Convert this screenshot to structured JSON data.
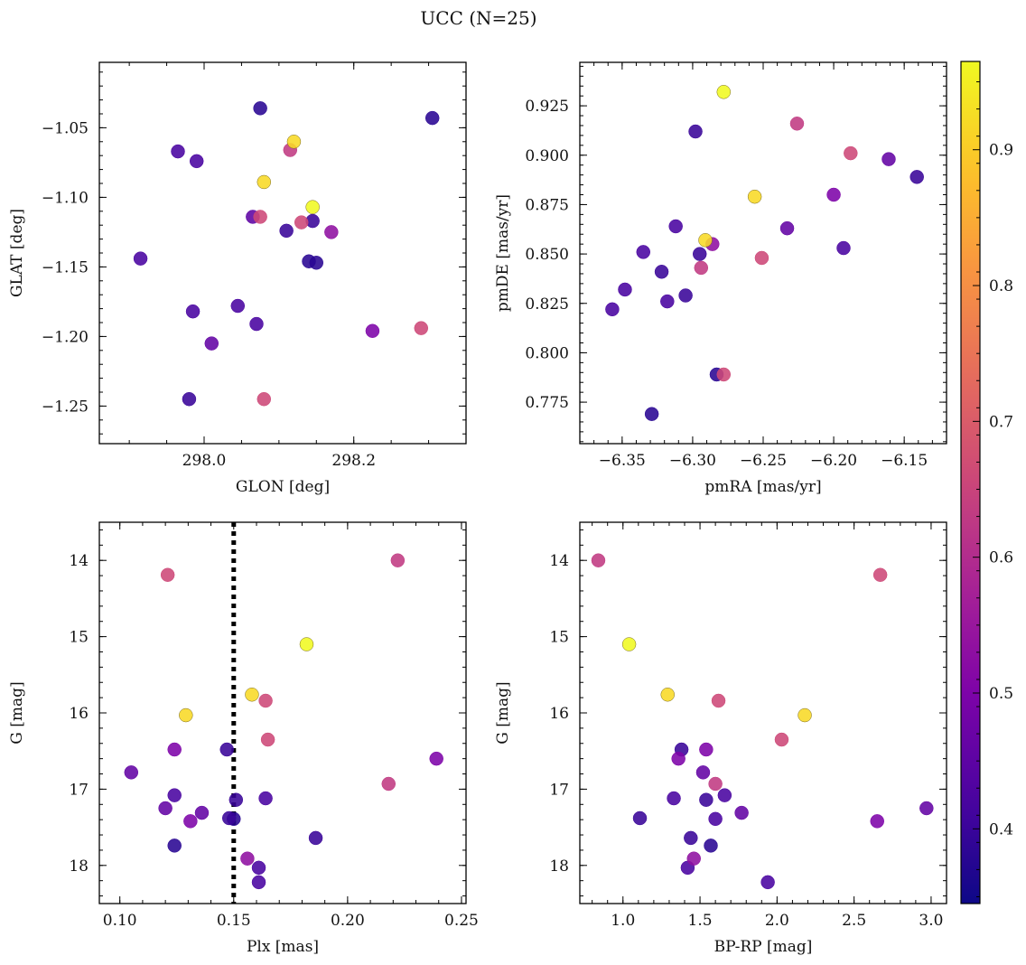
{
  "title": "UCC (N=25)",
  "colorbar": {
    "colormap": "plasma",
    "range": [
      0.345,
      0.965
    ],
    "ticks": [
      0.4,
      0.5,
      0.6,
      0.7,
      0.8,
      0.9
    ],
    "tick_labels": [
      "0.4",
      "0.5",
      "0.6",
      "0.7",
      "0.8",
      "0.9"
    ]
  },
  "chart_data": [
    {
      "type": "scatter",
      "xlabel": "GLON [deg]",
      "ylabel": "GLAT [deg]",
      "xlim": [
        297.86,
        298.35
      ],
      "ylim": [
        -1.277,
        -1.003
      ],
      "y_inverted": false,
      "xticks": [
        298.0,
        298.2
      ],
      "xtick_labels": [
        "298.0",
        "298.2"
      ],
      "yticks": [
        -1.25,
        -1.2,
        -1.15,
        -1.1,
        -1.05
      ],
      "ytick_labels": [
        "−1.25",
        "−1.20",
        "−1.15",
        "−1.10",
        "−1.05"
      ],
      "points": [
        {
          "x": 298.075,
          "y": -1.036,
          "c": 0.38
        },
        {
          "x": 298.305,
          "y": -1.043,
          "c": 0.38
        },
        {
          "x": 298.12,
          "y": -1.06,
          "c": 0.92
        },
        {
          "x": 297.965,
          "y": -1.067,
          "c": 0.42
        },
        {
          "x": 298.115,
          "y": -1.066,
          "c": 0.63
        },
        {
          "x": 297.99,
          "y": -1.074,
          "c": 0.42
        },
        {
          "x": 298.08,
          "y": -1.089,
          "c": 0.92
        },
        {
          "x": 298.145,
          "y": -1.107,
          "c": 0.965
        },
        {
          "x": 298.065,
          "y": -1.114,
          "c": 0.45
        },
        {
          "x": 298.075,
          "y": -1.114,
          "c": 0.66
        },
        {
          "x": 298.13,
          "y": -1.118,
          "c": 0.66
        },
        {
          "x": 298.145,
          "y": -1.117,
          "c": 0.4
        },
        {
          "x": 298.11,
          "y": -1.124,
          "c": 0.4
        },
        {
          "x": 298.17,
          "y": -1.125,
          "c": 0.53
        },
        {
          "x": 297.915,
          "y": -1.144,
          "c": 0.42
        },
        {
          "x": 298.14,
          "y": -1.146,
          "c": 0.38
        },
        {
          "x": 298.15,
          "y": -1.147,
          "c": 0.38
        },
        {
          "x": 298.045,
          "y": -1.178,
          "c": 0.42
        },
        {
          "x": 297.985,
          "y": -1.182,
          "c": 0.42
        },
        {
          "x": 298.07,
          "y": -1.191,
          "c": 0.42
        },
        {
          "x": 298.225,
          "y": -1.196,
          "c": 0.5
        },
        {
          "x": 298.29,
          "y": -1.194,
          "c": 0.66
        },
        {
          "x": 298.01,
          "y": -1.205,
          "c": 0.46
        },
        {
          "x": 297.98,
          "y": -1.245,
          "c": 0.4
        },
        {
          "x": 298.08,
          "y": -1.245,
          "c": 0.66
        }
      ]
    },
    {
      "type": "scatter",
      "xlabel": "pmRA [mas/yr]",
      "ylabel": "pmDE [mas/yr]",
      "xlim": [
        -6.38,
        -6.12
      ],
      "ylim": [
        0.754,
        0.947
      ],
      "y_inverted": false,
      "xticks": [
        -6.35,
        -6.3,
        -6.25,
        -6.2,
        -6.15
      ],
      "xtick_labels": [
        "−6.35",
        "−6.30",
        "−6.25",
        "−6.20",
        "−6.15"
      ],
      "yticks": [
        0.775,
        0.8,
        0.825,
        0.85,
        0.875,
        0.9,
        0.925
      ],
      "ytick_labels": [
        "0.775",
        "0.800",
        "0.825",
        "0.850",
        "0.875",
        "0.900",
        "0.925"
      ],
      "points": [
        {
          "x": -6.278,
          "y": 0.932,
          "c": 0.965
        },
        {
          "x": -6.226,
          "y": 0.916,
          "c": 0.63
        },
        {
          "x": -6.298,
          "y": 0.912,
          "c": 0.4
        },
        {
          "x": -6.188,
          "y": 0.901,
          "c": 0.66
        },
        {
          "x": -6.161,
          "y": 0.898,
          "c": 0.46
        },
        {
          "x": -6.141,
          "y": 0.889,
          "c": 0.4
        },
        {
          "x": -6.2,
          "y": 0.88,
          "c": 0.5
        },
        {
          "x": -6.256,
          "y": 0.879,
          "c": 0.92
        },
        {
          "x": -6.312,
          "y": 0.864,
          "c": 0.42
        },
        {
          "x": -6.233,
          "y": 0.863,
          "c": 0.46
        },
        {
          "x": -6.291,
          "y": 0.857,
          "c": 0.92
        },
        {
          "x": -6.286,
          "y": 0.855,
          "c": 0.53
        },
        {
          "x": -6.193,
          "y": 0.853,
          "c": 0.42
        },
        {
          "x": -6.335,
          "y": 0.851,
          "c": 0.42
        },
        {
          "x": -6.295,
          "y": 0.85,
          "c": 0.4
        },
        {
          "x": -6.251,
          "y": 0.848,
          "c": 0.66
        },
        {
          "x": -6.294,
          "y": 0.843,
          "c": 0.63
        },
        {
          "x": -6.322,
          "y": 0.841,
          "c": 0.4
        },
        {
          "x": -6.348,
          "y": 0.832,
          "c": 0.42
        },
        {
          "x": -6.305,
          "y": 0.829,
          "c": 0.4
        },
        {
          "x": -6.318,
          "y": 0.826,
          "c": 0.42
        },
        {
          "x": -6.357,
          "y": 0.822,
          "c": 0.42
        },
        {
          "x": -6.283,
          "y": 0.789,
          "c": 0.38
        },
        {
          "x": -6.278,
          "y": 0.789,
          "c": 0.66
        },
        {
          "x": -6.329,
          "y": 0.769,
          "c": 0.38
        }
      ]
    },
    {
      "type": "scatter",
      "xlabel": "Plx [mas]",
      "ylabel": "G [mag]",
      "xlim": [
        0.091,
        0.252
      ],
      "ylim": [
        13.5,
        18.5
      ],
      "y_inverted": true,
      "xticks": [
        0.1,
        0.15,
        0.2,
        0.25
      ],
      "xtick_labels": [
        "0.10",
        "0.15",
        "0.20",
        "0.25"
      ],
      "yticks": [
        14,
        15,
        16,
        17,
        18
      ],
      "ytick_labels": [
        "14",
        "15",
        "16",
        "17",
        "18"
      ],
      "vline": 0.15,
      "points": [
        {
          "x": 0.222,
          "y": 14.0,
          "c": 0.63
        },
        {
          "x": 0.121,
          "y": 14.19,
          "c": 0.66
        },
        {
          "x": 0.182,
          "y": 15.1,
          "c": 0.965
        },
        {
          "x": 0.158,
          "y": 15.76,
          "c": 0.92
        },
        {
          "x": 0.164,
          "y": 15.84,
          "c": 0.66
        },
        {
          "x": 0.129,
          "y": 16.03,
          "c": 0.92
        },
        {
          "x": 0.165,
          "y": 16.35,
          "c": 0.66
        },
        {
          "x": 0.124,
          "y": 16.48,
          "c": 0.5
        },
        {
          "x": 0.147,
          "y": 16.48,
          "c": 0.4
        },
        {
          "x": 0.239,
          "y": 16.6,
          "c": 0.5
        },
        {
          "x": 0.105,
          "y": 16.78,
          "c": 0.46
        },
        {
          "x": 0.218,
          "y": 16.93,
          "c": 0.63
        },
        {
          "x": 0.124,
          "y": 17.08,
          "c": 0.42
        },
        {
          "x": 0.164,
          "y": 17.12,
          "c": 0.42
        },
        {
          "x": 0.151,
          "y": 17.14,
          "c": 0.4
        },
        {
          "x": 0.12,
          "y": 17.25,
          "c": 0.46
        },
        {
          "x": 0.136,
          "y": 17.31,
          "c": 0.46
        },
        {
          "x": 0.131,
          "y": 17.42,
          "c": 0.5
        },
        {
          "x": 0.148,
          "y": 17.38,
          "c": 0.4
        },
        {
          "x": 0.15,
          "y": 17.39,
          "c": 0.38
        },
        {
          "x": 0.186,
          "y": 17.64,
          "c": 0.4
        },
        {
          "x": 0.124,
          "y": 17.74,
          "c": 0.38
        },
        {
          "x": 0.156,
          "y": 17.91,
          "c": 0.53
        },
        {
          "x": 0.161,
          "y": 18.03,
          "c": 0.42
        },
        {
          "x": 0.161,
          "y": 18.22,
          "c": 0.42
        }
      ]
    },
    {
      "type": "scatter",
      "xlabel": "BP-RP [mag]",
      "ylabel": "G [mag]",
      "xlim": [
        0.72,
        3.1
      ],
      "ylim": [
        13.5,
        18.5
      ],
      "y_inverted": true,
      "xticks": [
        1.0,
        1.5,
        2.0,
        2.5,
        3.0
      ],
      "xtick_labels": [
        "1.0",
        "1.5",
        "2.0",
        "2.5",
        "3.0"
      ],
      "yticks": [
        14,
        15,
        16,
        17,
        18
      ],
      "ytick_labels": [
        "14",
        "15",
        "16",
        "17",
        "18"
      ],
      "points": [
        {
          "x": 0.84,
          "y": 14.0,
          "c": 0.63
        },
        {
          "x": 2.67,
          "y": 14.19,
          "c": 0.66
        },
        {
          "x": 1.04,
          "y": 15.1,
          "c": 0.965
        },
        {
          "x": 1.29,
          "y": 15.76,
          "c": 0.92
        },
        {
          "x": 1.62,
          "y": 15.84,
          "c": 0.66
        },
        {
          "x": 2.18,
          "y": 16.03,
          "c": 0.92
        },
        {
          "x": 2.03,
          "y": 16.35,
          "c": 0.66
        },
        {
          "x": 1.38,
          "y": 16.48,
          "c": 0.4
        },
        {
          "x": 1.54,
          "y": 16.48,
          "c": 0.5
        },
        {
          "x": 1.36,
          "y": 16.6,
          "c": 0.5
        },
        {
          "x": 1.52,
          "y": 16.78,
          "c": 0.46
        },
        {
          "x": 1.6,
          "y": 16.93,
          "c": 0.63
        },
        {
          "x": 1.66,
          "y": 17.08,
          "c": 0.42
        },
        {
          "x": 1.33,
          "y": 17.12,
          "c": 0.42
        },
        {
          "x": 1.54,
          "y": 17.14,
          "c": 0.4
        },
        {
          "x": 2.97,
          "y": 17.25,
          "c": 0.46
        },
        {
          "x": 1.77,
          "y": 17.31,
          "c": 0.46
        },
        {
          "x": 2.65,
          "y": 17.42,
          "c": 0.5
        },
        {
          "x": 1.11,
          "y": 17.38,
          "c": 0.4
        },
        {
          "x": 1.6,
          "y": 17.39,
          "c": 0.42
        },
        {
          "x": 1.44,
          "y": 17.64,
          "c": 0.4
        },
        {
          "x": 1.57,
          "y": 17.74,
          "c": 0.38
        },
        {
          "x": 1.46,
          "y": 17.91,
          "c": 0.53
        },
        {
          "x": 1.42,
          "y": 18.03,
          "c": 0.42
        },
        {
          "x": 1.94,
          "y": 18.22,
          "c": 0.42
        }
      ]
    }
  ]
}
